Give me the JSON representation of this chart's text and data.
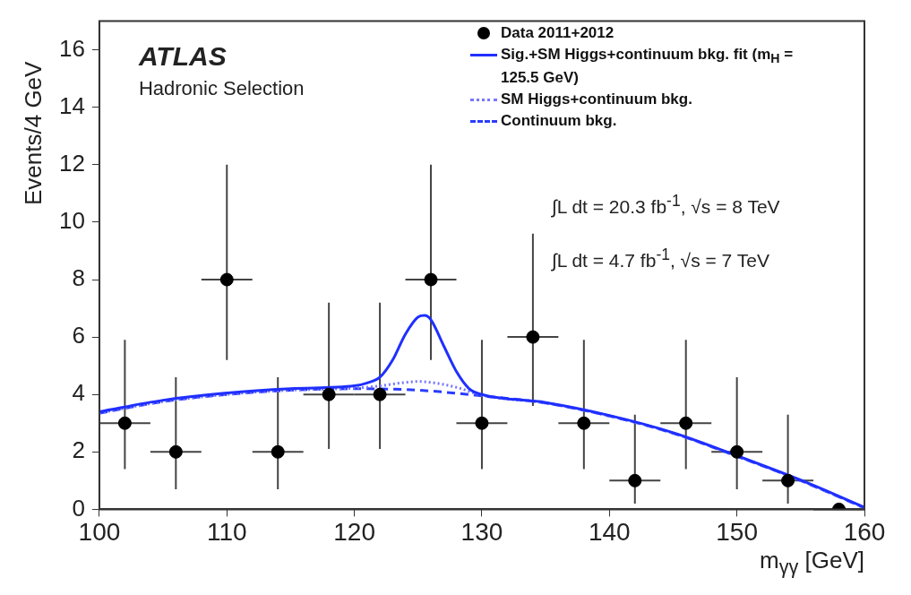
{
  "chart_data": {
    "type": "scatter",
    "xlabel": "m$_{γγ}$ [GeV]",
    "ylabel": "Events/4 GeV",
    "xlim": [
      100,
      160
    ],
    "xticks": [
      100,
      110,
      120,
      130,
      140,
      150,
      160
    ],
    "ylim": [
      0,
      17
    ],
    "yticks": [
      0,
      2,
      4,
      6,
      8,
      10,
      12,
      14,
      16
    ],
    "grid": false,
    "legend": "top right",
    "annotations": [
      "ATLAS",
      "Hadronic Selection",
      "∫L dt = 20.3 fb$^{-1}$, √s = 8 TeV",
      "∫L dt =  4.7 fb$^{-1}$,  √s = 7 TeV"
    ],
    "series": [
      {
        "name": "Data 2011+2012",
        "color": "#000000",
        "marker": "circle",
        "x": [
          102,
          106,
          110,
          114,
          118,
          122,
          126,
          130,
          134,
          138,
          142,
          146,
          150,
          154,
          158
        ],
        "values": [
          3,
          2,
          8,
          2,
          4,
          4,
          8,
          3,
          6,
          3,
          1,
          3,
          2,
          1,
          0
        ],
        "xerrors": [
          2,
          2,
          2,
          2,
          2,
          2,
          2,
          2,
          2,
          2,
          2,
          2,
          2,
          2,
          2
        ],
        "errors": [
          [
            1.4,
            5.9
          ],
          [
            0.7,
            4.6
          ],
          [
            5.2,
            12.0
          ],
          [
            0.7,
            4.6
          ],
          [
            2.1,
            7.2
          ],
          [
            2.1,
            7.2
          ],
          [
            5.2,
            12.0
          ],
          [
            1.4,
            5.9
          ],
          [
            3.6,
            9.6
          ],
          [
            1.4,
            5.9
          ],
          [
            0.2,
            3.3
          ],
          [
            1.4,
            5.9
          ],
          [
            0.7,
            4.6
          ],
          [
            0.2,
            3.3
          ],
          null
        ]
      },
      {
        "name": "Sig.+SM Higgs+continuum bkg. fit (m$_{H}$ = 125.5 GeV)",
        "type": "line",
        "color": "#1f2fff",
        "line_style": "solid",
        "marker": "none",
        "x": [
          100,
          105,
          110,
          115,
          120,
          121,
          122,
          123,
          124,
          125,
          125.5,
          126,
          127,
          128,
          129,
          130,
          135,
          140,
          145,
          150,
          155,
          160
        ],
        "values": [
          3.4,
          3.8,
          4.05,
          4.2,
          4.3,
          4.4,
          4.6,
          5.2,
          6.1,
          6.7,
          6.75,
          6.6,
          5.7,
          4.8,
          4.2,
          4.0,
          3.72,
          3.27,
          2.67,
          1.87,
          1.02,
          0.07
        ]
      },
      {
        "name": "SM Higgs+continuum bkg.",
        "type": "line",
        "color": "#7777ff",
        "line_style": "dotted",
        "marker": "none",
        "x": [
          100,
          105,
          110,
          115,
          120,
          122,
          124,
          125,
          126,
          128,
          130,
          135,
          140,
          145,
          150,
          155,
          160
        ],
        "values": [
          3.35,
          3.75,
          4.0,
          4.15,
          4.22,
          4.3,
          4.42,
          4.45,
          4.42,
          4.25,
          3.97,
          3.7,
          3.25,
          2.65,
          1.85,
          1.0,
          0.05
        ]
      },
      {
        "name": "Continuum bkg.",
        "type": "line",
        "color": "#2a3cff",
        "line_style": "dashed",
        "marker": "none",
        "x": [
          100,
          105,
          110,
          115,
          120,
          125,
          130,
          135,
          140,
          145,
          150,
          155,
          160
        ],
        "values": [
          3.35,
          3.75,
          4.0,
          4.15,
          4.2,
          4.15,
          3.95,
          3.7,
          3.25,
          2.65,
          1.85,
          1.0,
          0.05
        ]
      }
    ]
  }
}
